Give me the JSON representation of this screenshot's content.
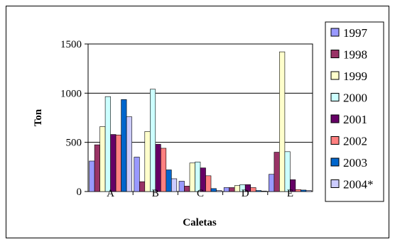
{
  "chart_data": {
    "type": "bar",
    "xlabel": "Caletas",
    "ylabel": "Ton",
    "ylim": [
      0,
      1500
    ],
    "yticks": [
      0,
      500,
      1000,
      1500
    ],
    "grid": "horizontal",
    "legend_position": "right",
    "categories": [
      "A",
      "B",
      "C",
      "D",
      "E"
    ],
    "series": [
      {
        "name": "1997",
        "color": "#9999FF",
        "values": [
          310,
          350,
          105,
          40,
          175
        ]
      },
      {
        "name": "1998",
        "color": "#993366",
        "values": [
          475,
          100,
          55,
          40,
          400
        ]
      },
      {
        "name": "1999",
        "color": "#FFFFCC",
        "values": [
          660,
          610,
          290,
          60,
          1420
        ]
      },
      {
        "name": "2000",
        "color": "#CCFFFF",
        "values": [
          965,
          1040,
          300,
          70,
          405
        ]
      },
      {
        "name": "2001",
        "color": "#660066",
        "values": [
          580,
          480,
          240,
          70,
          120
        ]
      },
      {
        "name": "2002",
        "color": "#FF8080",
        "values": [
          575,
          440,
          160,
          40,
          20
        ]
      },
      {
        "name": "2003",
        "color": "#0066CC",
        "values": [
          935,
          220,
          30,
          10,
          15
        ]
      },
      {
        "name": "2004*",
        "color": "#CCCCFF",
        "values": [
          760,
          130,
          10,
          5,
          10
        ]
      }
    ]
  }
}
